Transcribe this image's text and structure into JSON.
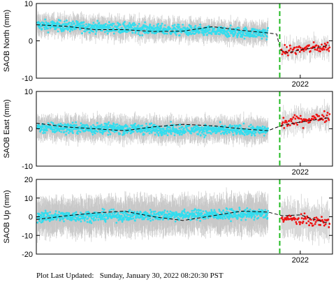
{
  "chart_data": [
    {
      "type": "scatter",
      "ylabel": "SAOB North (mm)",
      "ylim": [
        -10,
        10
      ],
      "yticks": [
        10,
        0,
        -10
      ],
      "xlim": [
        2017.5,
        2022.55
      ],
      "xticks": [
        {
          "value": 2022.0,
          "label": "2022"
        }
      ],
      "event_line_x": 2021.65,
      "series": [
        {
          "role": "observed",
          "color": "#33ddee",
          "segments": [
            {
              "x0": 2017.52,
              "x1": 2021.45,
              "y": [
                4.2,
                2.0
              ]
            }
          ]
        },
        {
          "role": "recent",
          "color": "#ee1111",
          "segments": [
            {
              "x0": 2021.68,
              "x1": 2022.5,
              "y": [
                -2.8,
                -1.5
              ]
            }
          ]
        },
        {
          "role": "model",
          "style": "dashed",
          "color": "#000000",
          "x": [
            2017.5,
            2018.0,
            2018.5,
            2019.0,
            2019.5,
            2020.0,
            2020.5,
            2021.0,
            2021.4,
            2021.6,
            2021.66,
            2021.8,
            2022.0,
            2022.2,
            2022.5
          ],
          "y": [
            4.3,
            3.9,
            3.0,
            3.0,
            2.5,
            2.6,
            3.8,
            2.8,
            2.2,
            1.8,
            -2.5,
            -3.2,
            -2.4,
            -2.0,
            -1.2
          ]
        }
      ],
      "error_bar": 2.2
    },
    {
      "type": "scatter",
      "ylabel": "SAOB East (mm)",
      "ylim": [
        -10,
        10
      ],
      "yticks": [
        10,
        0,
        -10
      ],
      "xlim": [
        2017.5,
        2022.55
      ],
      "xticks": [
        {
          "value": 2022.0,
          "label": "2022"
        }
      ],
      "event_line_x": 2021.65,
      "series": [
        {
          "role": "observed",
          "color": "#33ddee",
          "segments": [
            {
              "x0": 2017.52,
              "x1": 2021.45,
              "y": [
                0.3,
                -0.5
              ]
            }
          ]
        },
        {
          "role": "recent",
          "color": "#ee1111",
          "segments": [
            {
              "x0": 2021.68,
              "x1": 2022.5,
              "y": [
                1.5,
                3.5
              ]
            }
          ]
        },
        {
          "role": "model",
          "style": "dashed",
          "color": "#000000",
          "x": [
            2017.5,
            2018.0,
            2018.5,
            2019.0,
            2019.5,
            2020.0,
            2020.5,
            2021.0,
            2021.45,
            2021.7,
            2022.0,
            2022.3,
            2022.5
          ],
          "y": [
            1.5,
            0.5,
            0.0,
            -0.5,
            0.5,
            1.2,
            0.8,
            0.0,
            -0.5,
            1.0,
            1.8,
            2.5,
            3.0
          ]
        }
      ],
      "error_bar": 2.5
    },
    {
      "type": "scatter",
      "ylabel": "SAOB Up (mm)",
      "ylim": [
        -20,
        20
      ],
      "yticks": [
        20,
        10,
        0,
        -10,
        -20
      ],
      "xlim": [
        2017.5,
        2022.55
      ],
      "xticks": [
        {
          "value": 2022.0,
          "label": "2022"
        }
      ],
      "event_line_x": 2021.65,
      "series": [
        {
          "role": "observed",
          "color": "#33ddee",
          "segments": [
            {
              "x0": 2017.52,
              "x1": 2021.45,
              "y": [
                0.0,
                1.5
              ]
            }
          ]
        },
        {
          "role": "recent",
          "color": "#ee1111",
          "segments": [
            {
              "x0": 2021.68,
              "x1": 2022.5,
              "y": [
                -1.0,
                -3.0
              ]
            }
          ]
        },
        {
          "role": "model",
          "style": "dashed",
          "color": "#000000",
          "x": [
            2017.5,
            2018.0,
            2018.5,
            2019.0,
            2019.5,
            2020.0,
            2020.5,
            2021.0,
            2021.45,
            2021.7,
            2022.0,
            2022.3,
            2022.5
          ],
          "y": [
            -1.5,
            0.5,
            2.0,
            3.0,
            0.0,
            -2.0,
            0.5,
            3.0,
            2.5,
            0.5,
            1.0,
            -2.0,
            -3.5
          ]
        }
      ],
      "error_bar": 8.0
    }
  ],
  "footer": "Plot Last Updated:   Sunday, January 30, 2022 08:20:30 PST",
  "colors": {
    "error_bars": "#c8c8c8",
    "event_line": "#22bb22"
  }
}
